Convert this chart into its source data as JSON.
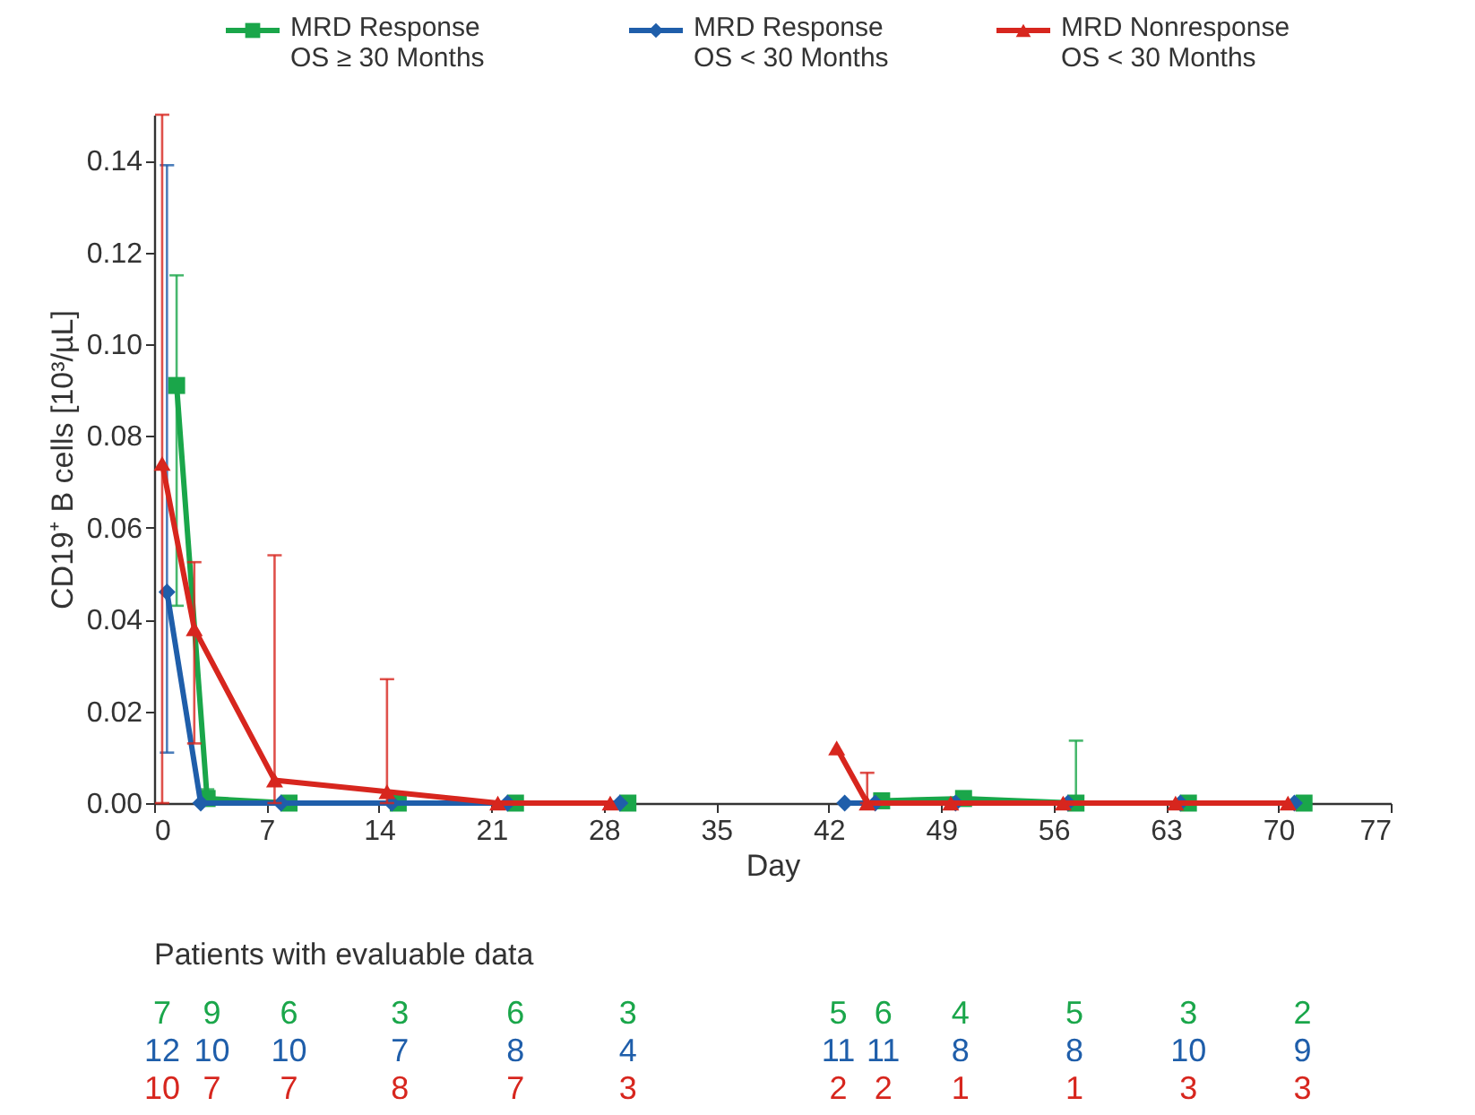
{
  "chart_data": {
    "type": "line",
    "xlabel": "Day",
    "ylabel": "CD19⁺ B cells [10³/µL]",
    "xlim": [
      0,
      77
    ],
    "xticks": [
      0,
      7,
      14,
      21,
      28,
      35,
      42,
      49,
      56,
      63,
      70,
      77
    ],
    "ylim": [
      0,
      0.15
    ],
    "yticks": [
      {
        "value": 0,
        "label": "0.00"
      },
      {
        "value": 0.02,
        "label": "0.02"
      },
      {
        "value": 0.04,
        "label": "0.04"
      },
      {
        "value": 0.06,
        "label": "0.06"
      },
      {
        "value": 0.08,
        "label": "0.08"
      },
      {
        "value": 0.1,
        "label": "0.10"
      },
      {
        "value": 0.12,
        "label": "0.12"
      },
      {
        "value": 0.14,
        "label": "0.14"
      }
    ],
    "grid": false,
    "legend": "top",
    "series": [
      {
        "name": "MRD Response\nOS ≥ 30 Months",
        "color": "#1aa64a",
        "marker": "square",
        "x": [
          1.4,
          3.3,
          8.4,
          15.2,
          22.5,
          29.5,
          36,
          45.3,
          50.4,
          57.4,
          64.4,
          71.6
        ],
        "values": [
          0.091,
          0.001,
          0,
          0,
          0,
          0,
          null,
          0.0005,
          0.001,
          0,
          0,
          0
        ],
        "errors": [
          [
            0.043,
            0.115
          ],
          [
            0,
            0.003
          ],
          null,
          null,
          null,
          null,
          null,
          [
            0,
            0.002
          ],
          null,
          [
            0,
            0.0136
          ],
          null,
          null
        ]
      },
      {
        "name": "MRD Response\nOS < 30 Months",
        "color": "#1f5eaa",
        "marker": "diamond",
        "x": [
          0.8,
          2.9,
          7.9,
          14.8,
          22.0,
          29.0,
          36,
          43.0,
          44.9,
          49.9,
          56.9,
          63.9,
          71.0
        ],
        "values": [
          0.046,
          0,
          0,
          0,
          0,
          0,
          null,
          0,
          0,
          0,
          0,
          0,
          0
        ],
        "errors": [
          [
            0.011,
            0.139
          ],
          null,
          null,
          null,
          null,
          null,
          null,
          null,
          null,
          null,
          null,
          null,
          null
        ]
      },
      {
        "name": "MRD Nonresponse\nOS < 30 Months",
        "color": "#d7261e",
        "marker": "triangle",
        "x": [
          0.5,
          2.5,
          7.5,
          14.5,
          21.4,
          28.4,
          36,
          42.5,
          44.4,
          49.6,
          56.6,
          63.6,
          70.6
        ],
        "values": [
          0.074,
          0.038,
          0.005,
          0.0025,
          0,
          0,
          null,
          0.012,
          0,
          0,
          0,
          0,
          0
        ],
        "errors": [
          [
            0,
            0.15
          ],
          [
            0.013,
            0.0525
          ],
          [
            0,
            0.054
          ],
          [
            0,
            0.027
          ],
          null,
          null,
          null,
          null,
          [
            0,
            0.0066
          ],
          null,
          null,
          null,
          null
        ]
      }
    ],
    "annotations": [
      "Patients with evaluable data",
      "7 9 6 3 6 3 5 6 4 5 3 2",
      "12 10 10 7 8 4 11 11 8 8 10 9",
      "10 7 7 8 7 3 2 2 1 1 3 3"
    ]
  }
}
